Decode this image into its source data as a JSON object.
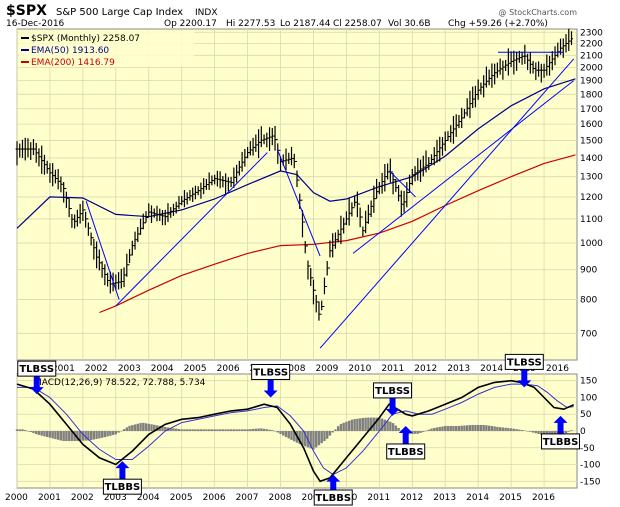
{
  "header": {
    "symbol": "$SPX",
    "name": "S&P 500 Large Cap Index",
    "exchange": "INDX",
    "date": "16-Dec-2016",
    "open": "Op 2200.17",
    "high": "Hi 2277.53",
    "low": "Lo 2187.44",
    "close": "Cl 2258.07",
    "volume": "Vol 30.6B",
    "change": "Chg +59.26 (+2.70%)",
    "watermark": "@ StockCharts.com"
  },
  "legend": {
    "price": "$SPX (Monthly) 2258.07",
    "ema50": "EMA(50) 1913.60",
    "ema200": "EMA(200) 1416.79",
    "macd": "MACD(12,26,9) 78.522, 72.788, 5.734"
  },
  "colors": {
    "plot_bg": "#ffffcc",
    "grid": "#d8d8b0",
    "price": "#000000",
    "ema50": "#00008b",
    "ema200": "#cc0000",
    "trendline": "#0000ff",
    "macd_signal": "#3333cc",
    "histogram": "#808080",
    "callout_bg": "#ffffff",
    "arrow": "#0000ff"
  },
  "chart_data": [
    {
      "type": "line",
      "title": "",
      "scale": "log",
      "xlim": [
        2000,
        2017
      ],
      "ylim": [
        630,
        2330
      ],
      "yticks": [
        700,
        800,
        900,
        1000,
        1100,
        1200,
        1300,
        1400,
        1500,
        1600,
        1700,
        1800,
        1900,
        2000,
        2100,
        2200,
        2300
      ],
      "xticks": [
        2000,
        2001,
        2002,
        2003,
        2004,
        2005,
        2006,
        2007,
        2008,
        2009,
        2010,
        2011,
        2012,
        2013,
        2014,
        2015,
        2016
      ],
      "grid": true,
      "legend_position": "top-left",
      "series": [
        {
          "name": "$SPX (Monthly)",
          "style": "ohlc-bars",
          "x": [
            2000.0,
            2000.5,
            2001.0,
            2001.4,
            2001.7,
            2002.0,
            2002.4,
            2002.6,
            2002.8,
            2003.0,
            2003.2,
            2003.5,
            2004.0,
            2004.5,
            2005.0,
            2005.5,
            2006.0,
            2006.5,
            2007.0,
            2007.4,
            2007.8,
            2008.0,
            2008.4,
            2008.8,
            2009.0,
            2009.2,
            2009.5,
            2010.0,
            2010.3,
            2010.5,
            2010.9,
            2011.3,
            2011.7,
            2012.0,
            2012.5,
            2013.0,
            2013.5,
            2014.0,
            2014.5,
            2015.0,
            2015.4,
            2015.7,
            2016.0,
            2016.5,
            2016.9
          ],
          "values": [
            1450,
            1450,
            1320,
            1250,
            1080,
            1140,
            950,
            900,
            850,
            855,
            860,
            990,
            1130,
            1110,
            1180,
            1230,
            1290,
            1270,
            1430,
            1500,
            1530,
            1380,
            1400,
            930,
            830,
            740,
            970,
            1100,
            1190,
            1050,
            1220,
            1340,
            1150,
            1310,
            1370,
            1500,
            1640,
            1830,
            1960,
            2050,
            2100,
            1980,
            1980,
            2160,
            2258
          ]
        },
        {
          "name": "EMA(50)",
          "x": [
            2000,
            2001,
            2002,
            2003,
            2004,
            2005,
            2006,
            2007,
            2008,
            2008.5,
            2009,
            2009.5,
            2010,
            2011,
            2012,
            2013,
            2014,
            2015,
            2016,
            2016.95
          ],
          "values": [
            1060,
            1200,
            1195,
            1120,
            1110,
            1140,
            1190,
            1260,
            1330,
            1310,
            1220,
            1180,
            1190,
            1250,
            1300,
            1410,
            1570,
            1720,
            1840,
            1913.6
          ]
        },
        {
          "name": "EMA(200)",
          "x": [
            2002.5,
            2003,
            2004,
            2005,
            2006,
            2007,
            2008,
            2009,
            2010,
            2011,
            2012,
            2013,
            2014,
            2015,
            2016,
            2016.95
          ],
          "values": [
            760,
            780,
            830,
            880,
            920,
            960,
            990,
            995,
            1010,
            1040,
            1090,
            1160,
            1230,
            1300,
            1370,
            1416.8
          ]
        }
      ],
      "trendlines": [
        {
          "x": [
            2002.1,
            2003.1
          ],
          "values": [
            1180,
            800
          ]
        },
        {
          "x": [
            2003.0,
            2007.6
          ],
          "values": [
            780,
            1430
          ]
        },
        {
          "x": [
            2007.9,
            2009.2
          ],
          "values": [
            1450,
            950
          ]
        },
        {
          "x": [
            2009.2,
            2016.9
          ],
          "values": [
            660,
            2070
          ]
        },
        {
          "x": [
            2010.2,
            2016.9
          ],
          "values": [
            960,
            1900
          ]
        },
        {
          "x": [
            2011.3,
            2012.1
          ],
          "values": [
            1330,
            1200
          ]
        },
        {
          "x": [
            2014.6,
            2016.6
          ],
          "values": [
            2125,
            2125
          ]
        }
      ]
    },
    {
      "type": "line",
      "title": "",
      "xlim": [
        2000,
        2017
      ],
      "ylim": [
        -170,
        170
      ],
      "yticks": [
        150,
        100,
        50,
        0,
        -50,
        -100,
        -150
      ],
      "xticks": [
        2000,
        2001,
        2002,
        2003,
        2004,
        2005,
        2006,
        2007,
        2008,
        2009,
        2010,
        2011,
        2012,
        2013,
        2014,
        2015,
        2016
      ],
      "grid": true,
      "series": [
        {
          "name": "MACD",
          "x": [
            2000.0,
            2000.5,
            2001.0,
            2001.5,
            2002.0,
            2002.5,
            2003.0,
            2003.5,
            2004.0,
            2004.5,
            2005.0,
            2005.5,
            2006.0,
            2006.5,
            2007.0,
            2007.5,
            2007.9,
            2008.3,
            2008.7,
            2009.0,
            2009.2,
            2009.5,
            2010.0,
            2010.5,
            2011.0,
            2011.3,
            2011.8,
            2012.0,
            2012.5,
            2013.0,
            2013.5,
            2014.0,
            2014.5,
            2015.0,
            2015.3,
            2015.7,
            2016.0,
            2016.3,
            2016.6,
            2016.9
          ],
          "values": [
            140,
            125,
            80,
            20,
            -40,
            -80,
            -100,
            -60,
            -10,
            20,
            35,
            40,
            50,
            60,
            65,
            80,
            70,
            20,
            -50,
            -120,
            -150,
            -140,
            -80,
            -20,
            40,
            80,
            50,
            45,
            60,
            80,
            100,
            130,
            145,
            150,
            145,
            130,
            100,
            70,
            65,
            78.5
          ]
        },
        {
          "name": "Signal",
          "x": [
            2000.0,
            2000.5,
            2001.0,
            2001.5,
            2002.0,
            2002.5,
            2003.0,
            2003.5,
            2004.0,
            2004.5,
            2005.0,
            2005.5,
            2006.0,
            2006.5,
            2007.0,
            2007.5,
            2007.9,
            2008.3,
            2008.7,
            2009.0,
            2009.3,
            2009.6,
            2010.0,
            2010.5,
            2011.0,
            2011.4,
            2011.8,
            2012.2,
            2012.6,
            2013.0,
            2013.5,
            2014.0,
            2014.5,
            2015.0,
            2015.4,
            2015.8,
            2016.1,
            2016.4,
            2016.7,
            2016.9
          ],
          "values": [
            130,
            130,
            100,
            50,
            -10,
            -55,
            -85,
            -85,
            -45,
            0,
            25,
            35,
            45,
            55,
            60,
            70,
            75,
            45,
            0,
            -60,
            -110,
            -130,
            -110,
            -60,
            0,
            50,
            60,
            50,
            50,
            65,
            85,
            110,
            130,
            140,
            140,
            135,
            115,
            90,
            70,
            72.8
          ]
        },
        {
          "name": "Histogram",
          "style": "bars",
          "x": [
            2000.2,
            2000.6,
            2001.0,
            2001.4,
            2001.8,
            2002.2,
            2002.6,
            2003.0,
            2003.4,
            2003.8,
            2004.2,
            2004.6,
            2005.0,
            2005.4,
            2005.8,
            2006.2,
            2006.6,
            2007.0,
            2007.4,
            2007.8,
            2008.2,
            2008.6,
            2009.0,
            2009.4,
            2009.8,
            2010.2,
            2010.6,
            2011.0,
            2011.4,
            2011.8,
            2012.2,
            2012.6,
            2013.0,
            2013.4,
            2013.8,
            2014.2,
            2014.6,
            2015.0,
            2015.4,
            2015.8,
            2016.2,
            2016.6,
            2016.9
          ],
          "values": [
            5,
            -10,
            -20,
            -30,
            -30,
            -28,
            -20,
            -10,
            15,
            25,
            18,
            10,
            5,
            5,
            5,
            5,
            5,
            5,
            8,
            2,
            -20,
            -40,
            -55,
            -25,
            20,
            35,
            40,
            40,
            25,
            -10,
            -8,
            8,
            15,
            15,
            18,
            18,
            12,
            8,
            2,
            -8,
            -18,
            -10,
            5.7
          ]
        }
      ],
      "callouts": [
        {
          "label": "TLBSS",
          "x": 2000.6,
          "y": 110,
          "pointer": "down",
          "box_side": "above"
        },
        {
          "label": "TLBBS",
          "x": 2003.2,
          "y": -90,
          "pointer": "up",
          "box_side": "below"
        },
        {
          "label": "TLBSS",
          "x": 2007.7,
          "y": 100,
          "pointer": "down",
          "box_side": "above"
        },
        {
          "label": "TLBBS",
          "x": 2009.6,
          "y": -130,
          "pointer": "up",
          "box_side": "below"
        },
        {
          "label": "TLBSS",
          "x": 2011.4,
          "y": 45,
          "pointer": "down",
          "box_side": "above"
        },
        {
          "label": "TLBBS",
          "x": 2011.8,
          "y": 15,
          "pointer": "up",
          "box_side": "below"
        },
        {
          "label": "TLBSS",
          "x": 2015.4,
          "y": 130,
          "pointer": "down",
          "box_side": "above"
        },
        {
          "label": "TLBBS",
          "x": 2016.5,
          "y": 45,
          "pointer": "up",
          "box_side": "below"
        }
      ]
    }
  ]
}
